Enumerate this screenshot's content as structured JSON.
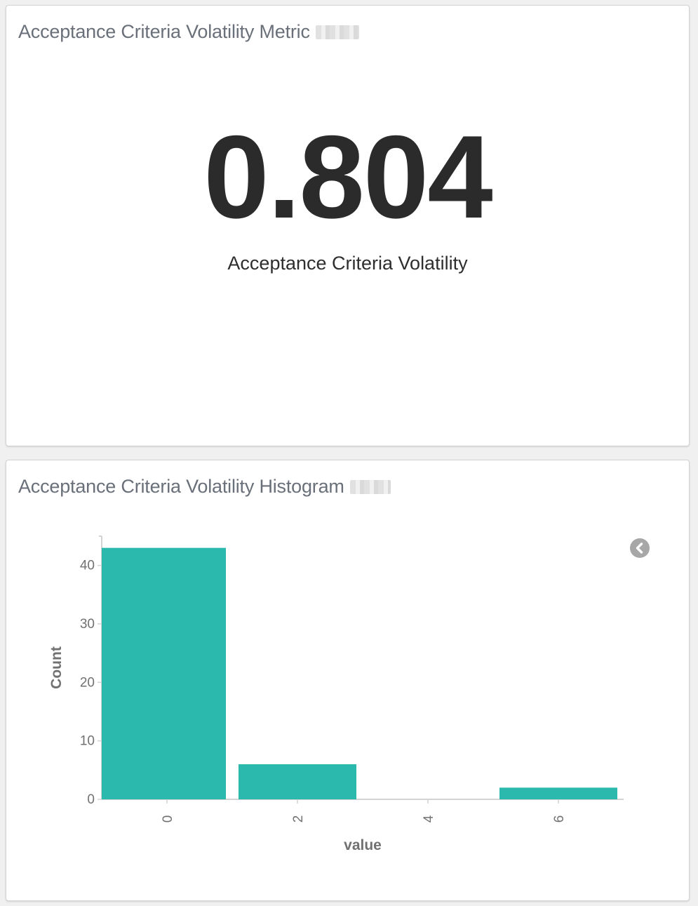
{
  "metric_panel": {
    "title": "Acceptance Criteria Volatility Metric",
    "value": "0.804",
    "label": "Acceptance Criteria Volatility"
  },
  "histogram_panel": {
    "title": "Acceptance Criteria Volatility Histogram",
    "legend_toggle_icon": "chevron-left-circle-icon"
  },
  "colors": {
    "bar": "#2bb8ad",
    "axis": "#d3d3d3",
    "tick_text": "#717171",
    "axis_title": "#717171"
  },
  "chart_data": {
    "type": "bar",
    "categories": [
      "0",
      "2",
      "4",
      "6"
    ],
    "x_ticks": [
      "0",
      "2",
      "4",
      "6"
    ],
    "bins": [
      {
        "x_start": 0,
        "x_end": 2,
        "value": 43
      },
      {
        "x_start": 2,
        "x_end": 4,
        "value": 6
      },
      {
        "x_start": 4,
        "x_end": 6,
        "value": 0
      },
      {
        "x_start": 6,
        "x_end": 8,
        "value": 2
      }
    ],
    "values": [
      43,
      6,
      0,
      2
    ],
    "y_ticks": [
      "0",
      "10",
      "20",
      "30",
      "40"
    ],
    "xlabel": "value",
    "ylabel": "Count",
    "ylim": [
      0,
      45
    ],
    "grid": false,
    "legend": "collapsed"
  }
}
